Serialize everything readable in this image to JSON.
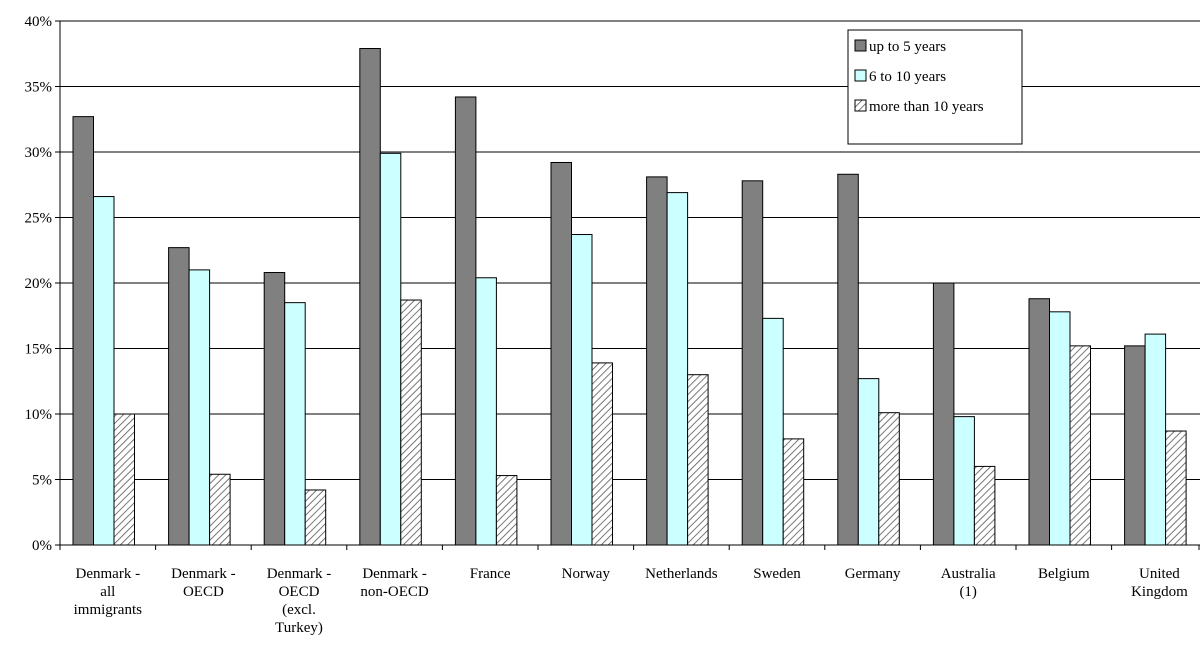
{
  "chart_data": {
    "type": "bar",
    "title": "",
    "xlabel": "",
    "ylabel": "",
    "ylim": [
      0,
      40
    ],
    "y_ticks": [
      "0%",
      "5%",
      "10%",
      "15%",
      "20%",
      "25%",
      "30%",
      "35%",
      "40%"
    ],
    "y_tick_values": [
      0,
      5,
      10,
      15,
      20,
      25,
      30,
      35,
      40
    ],
    "grid": true,
    "legend_position": "top-right",
    "categories": [
      [
        "Denmark -",
        "all",
        "immigrants"
      ],
      [
        "Denmark -",
        "OECD"
      ],
      [
        "Denmark -",
        "OECD",
        "(excl.",
        "Turkey)"
      ],
      [
        "Denmark -",
        "non-OECD"
      ],
      [
        "France"
      ],
      [
        "Norway"
      ],
      [
        "Netherlands"
      ],
      [
        "Sweden"
      ],
      [
        "Germany"
      ],
      [
        "Australia",
        "(1)"
      ],
      [
        "Belgium"
      ],
      [
        "United",
        "Kingdom"
      ]
    ],
    "series": [
      {
        "name": "up to 5 years",
        "color": "#808080",
        "pattern": "solid",
        "values": [
          32.7,
          22.7,
          20.8,
          37.9,
          34.2,
          29.2,
          28.1,
          27.8,
          28.3,
          20.0,
          18.8,
          15.2
        ]
      },
      {
        "name": "6 to 10 years",
        "color": "#ccffff",
        "pattern": "solid",
        "values": [
          26.6,
          21.0,
          18.5,
          29.9,
          20.4,
          23.7,
          26.9,
          17.3,
          12.7,
          9.8,
          17.8,
          16.1
        ]
      },
      {
        "name": "more than 10 years",
        "color": "#ffffff",
        "pattern": "diagonal-hatch",
        "values": [
          10.0,
          5.4,
          4.2,
          18.7,
          5.3,
          13.9,
          13.0,
          8.1,
          10.1,
          6.0,
          15.2,
          8.7
        ]
      }
    ]
  }
}
